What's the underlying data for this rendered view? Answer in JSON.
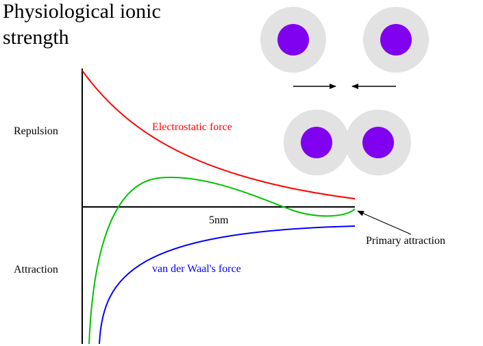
{
  "title_lines": [
    "Physiological ionic",
    "strength"
  ],
  "y_labels": {
    "top": "Repulsion",
    "bottom": "Attraction"
  },
  "curve_labels": {
    "electrostatic": "Electrostatic force",
    "van_der_waals": "van der Waal's force"
  },
  "x_label": "5nm",
  "annotation": "Primary attraction"
}
